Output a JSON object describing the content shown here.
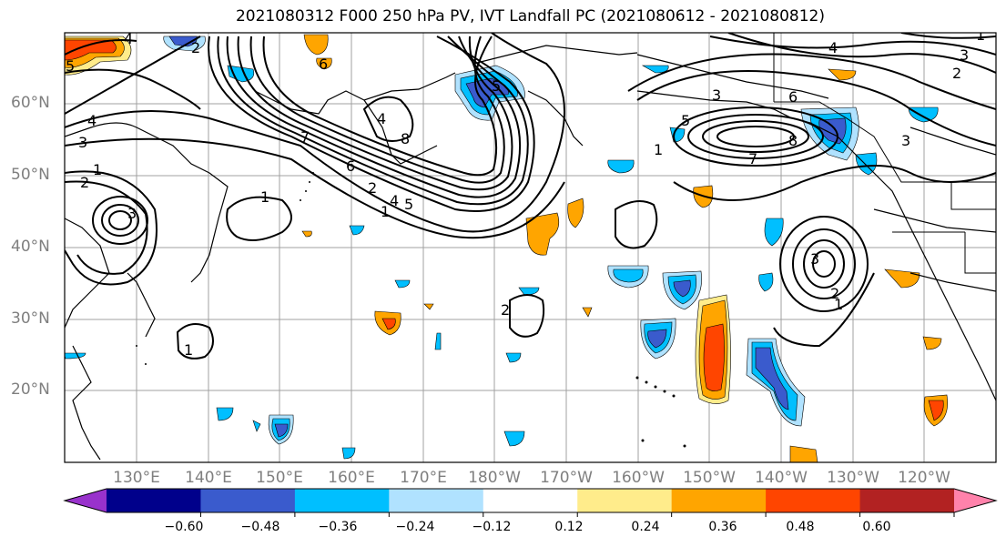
{
  "title": "2021080312 F000 250 hPa PV, IVT Landfall PC (2021080612 - 2021080812)",
  "lat_labels": [
    "60°N",
    "50°N",
    "40°N",
    "30°N",
    "20°N"
  ],
  "lon_labels": [
    "130°E",
    "140°E",
    "150°E",
    "160°E",
    "170°E",
    "180°W",
    "170°W",
    "160°W",
    "150°W",
    "140°W",
    "130°W",
    "120°W"
  ],
  "colorbar": {
    "colors": [
      "#9932cc",
      "#00008b",
      "#3a5bcd",
      "#00bfff",
      "#b0e2ff",
      "#ffffff",
      "#ffec8b",
      "#ffa500",
      "#ff4500",
      "#b22222",
      "#ff82ab"
    ],
    "tick_labels": [
      "−0.60",
      "−0.48",
      "−0.36",
      "−0.24",
      "−0.12",
      "0.12",
      "0.24",
      "0.36",
      "0.48",
      "0.60"
    ]
  },
  "contour_labels": [
    "4",
    "5",
    "4",
    "3",
    "1",
    "2",
    "3",
    "2",
    "1",
    "6",
    "4",
    "8",
    "5",
    "7",
    "6",
    "2",
    "4",
    "5",
    "1",
    "8",
    "3",
    "5",
    "6",
    "4",
    "3",
    "2",
    "1",
    "7",
    "3",
    "2",
    "2",
    "1",
    "1",
    "1",
    "3"
  ]
}
